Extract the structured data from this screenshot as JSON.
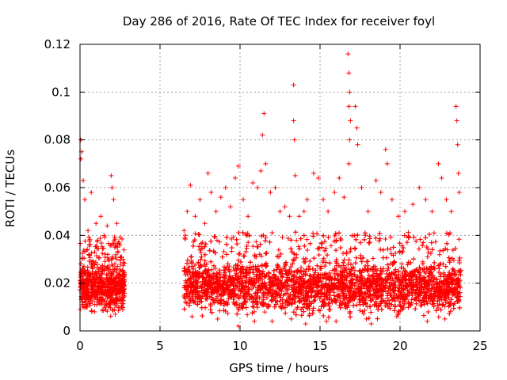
{
  "chart_data": {
    "type": "scatter",
    "title": "Day 286 of 2016, Rate Of TEC Index for receiver foyl",
    "xlabel": "GPS time / hours",
    "ylabel": "ROTI / TECUs",
    "xlim": [
      0,
      25
    ],
    "ylim": [
      0,
      0.12
    ],
    "xticks": [
      0,
      5,
      10,
      15,
      20,
      25
    ],
    "yticks": [
      0,
      0.02,
      0.04,
      0.06,
      0.08,
      0.1,
      0.12
    ],
    "xtick_labels": [
      "0",
      "5",
      "10",
      "15",
      "20",
      "25"
    ],
    "ytick_labels": [
      "0",
      "0.02",
      "0.04",
      "0.06",
      "0.08",
      "0.1",
      "0.12"
    ],
    "grid": true,
    "marker": "+",
    "series": [
      {
        "name": "ROTI",
        "color": "#ff0000",
        "data_gap_hours": [
          2.85,
          6.45
        ],
        "points": [
          [
            0.05,
            0.08
          ],
          [
            0.1,
            0.075
          ],
          [
            0.05,
            0.072
          ],
          [
            0.2,
            0.063
          ],
          [
            0.3,
            0.055
          ],
          [
            0.7,
            0.058
          ],
          [
            1.0,
            0.045
          ],
          [
            1.3,
            0.048
          ],
          [
            1.5,
            0.04
          ],
          [
            1.7,
            0.044
          ],
          [
            1.95,
            0.065
          ],
          [
            2.0,
            0.06
          ],
          [
            2.1,
            0.055
          ],
          [
            2.3,
            0.045
          ],
          [
            2.5,
            0.036
          ],
          [
            2.7,
            0.03
          ],
          [
            0.5,
            0.042
          ],
          [
            1.1,
            0.038
          ],
          [
            0.15,
            0.012
          ],
          [
            0.4,
            0.01
          ],
          [
            0.9,
            0.008
          ],
          [
            1.6,
            0.009
          ],
          [
            2.2,
            0.007
          ],
          [
            2.6,
            0.01
          ],
          [
            6.5,
            0.042
          ],
          [
            6.7,
            0.05
          ],
          [
            6.9,
            0.061
          ],
          [
            7.2,
            0.048
          ],
          [
            7.5,
            0.055
          ],
          [
            7.8,
            0.045
          ],
          [
            8.0,
            0.066
          ],
          [
            8.2,
            0.058
          ],
          [
            8.5,
            0.05
          ],
          [
            8.8,
            0.056
          ],
          [
            9.1,
            0.06
          ],
          [
            9.4,
            0.052
          ],
          [
            9.7,
            0.064
          ],
          [
            9.9,
            0.069
          ],
          [
            10.2,
            0.055
          ],
          [
            10.5,
            0.048
          ],
          [
            10.8,
            0.062
          ],
          [
            11.1,
            0.06
          ],
          [
            11.3,
            0.067
          ],
          [
            11.4,
            0.082
          ],
          [
            11.5,
            0.091
          ],
          [
            11.6,
            0.07
          ],
          [
            11.9,
            0.058
          ],
          [
            12.2,
            0.06
          ],
          [
            12.5,
            0.05
          ],
          [
            12.8,
            0.052
          ],
          [
            13.1,
            0.048
          ],
          [
            13.35,
            0.103
          ],
          [
            13.35,
            0.088
          ],
          [
            13.4,
            0.08
          ],
          [
            13.45,
            0.065
          ],
          [
            13.7,
            0.048
          ],
          [
            14.0,
            0.05
          ],
          [
            14.2,
            0.055
          ],
          [
            14.6,
            0.066
          ],
          [
            14.9,
            0.064
          ],
          [
            15.2,
            0.055
          ],
          [
            15.5,
            0.05
          ],
          [
            15.9,
            0.058
          ],
          [
            16.2,
            0.064
          ],
          [
            16.5,
            0.056
          ],
          [
            16.75,
            0.116
          ],
          [
            16.8,
            0.108
          ],
          [
            16.85,
            0.1
          ],
          [
            16.8,
            0.094
          ],
          [
            16.9,
            0.088
          ],
          [
            16.85,
            0.08
          ],
          [
            16.8,
            0.07
          ],
          [
            17.2,
            0.094
          ],
          [
            17.3,
            0.085
          ],
          [
            17.35,
            0.078
          ],
          [
            17.6,
            0.06
          ],
          [
            18.0,
            0.05
          ],
          [
            18.5,
            0.063
          ],
          [
            18.8,
            0.058
          ],
          [
            19.1,
            0.076
          ],
          [
            19.2,
            0.07
          ],
          [
            19.5,
            0.055
          ],
          [
            19.9,
            0.048
          ],
          [
            20.3,
            0.05
          ],
          [
            20.8,
            0.053
          ],
          [
            21.2,
            0.06
          ],
          [
            21.6,
            0.055
          ],
          [
            22.0,
            0.05
          ],
          [
            22.4,
            0.07
          ],
          [
            22.6,
            0.064
          ],
          [
            22.9,
            0.055
          ],
          [
            23.2,
            0.05
          ],
          [
            23.5,
            0.094
          ],
          [
            23.55,
            0.088
          ],
          [
            23.6,
            0.078
          ],
          [
            23.65,
            0.066
          ],
          [
            23.7,
            0.058
          ],
          [
            9.9,
            0.002
          ],
          [
            12.0,
            0.004
          ],
          [
            14.1,
            0.003
          ],
          [
            16.0,
            0.004
          ],
          [
            18.2,
            0.003
          ],
          [
            21.7,
            0.004
          ],
          [
            7.0,
            0.006
          ],
          [
            8.6,
            0.005
          ],
          [
            10.9,
            0.004
          ],
          [
            13.2,
            0.005
          ],
          [
            15.4,
            0.004
          ],
          [
            17.9,
            0.005
          ],
          [
            19.8,
            0.006
          ],
          [
            22.8,
            0.005
          ]
        ],
        "dense_bands": [
          {
            "x_range": [
              0,
              2.8
            ],
            "y_center": 0.018,
            "y_spread": 0.012
          },
          {
            "x_range": [
              6.5,
              23.8
            ],
            "y_center": 0.018,
            "y_spread": 0.013
          }
        ]
      }
    ]
  }
}
